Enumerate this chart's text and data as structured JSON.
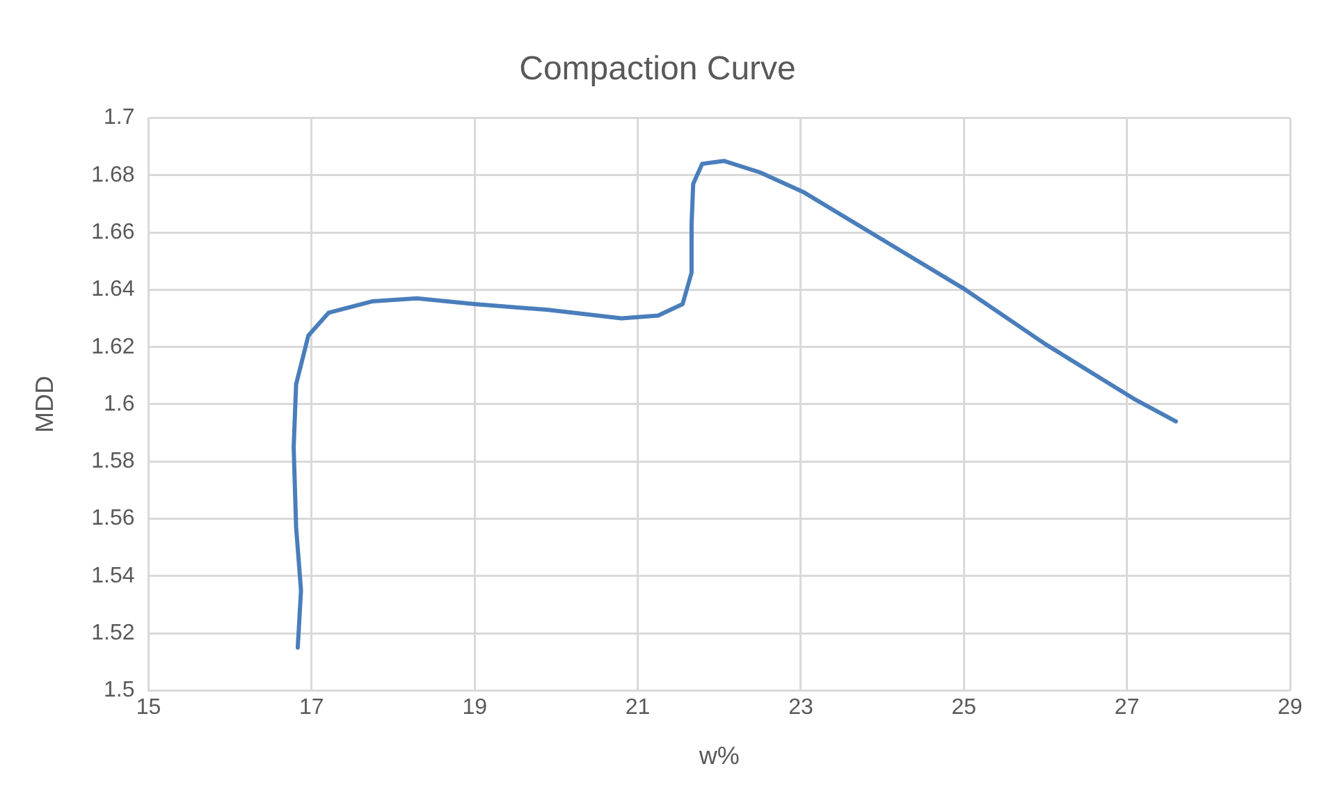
{
  "chart_data": {
    "type": "line",
    "title": "Compaction Curve",
    "xlabel": "w%",
    "ylabel": "MDD",
    "x": [
      16.83,
      16.87,
      16.81,
      16.78,
      16.81,
      16.96,
      17.21,
      17.75,
      18.29,
      19.0,
      19.9,
      20.8,
      21.25,
      21.55,
      21.66,
      21.66,
      21.68,
      21.79,
      22.06,
      22.5,
      23.04,
      24.03,
      25.02,
      26.0,
      27.08,
      27.6
    ],
    "series": [
      {
        "color": "#4a7ebb",
        "values": [
          1.515,
          1.535,
          1.557,
          1.585,
          1.607,
          1.624,
          1.632,
          1.636,
          1.637,
          1.635,
          1.633,
          1.63,
          1.631,
          1.635,
          1.646,
          1.663,
          1.677,
          1.684,
          1.685,
          1.681,
          1.674,
          1.657,
          1.64,
          1.621,
          1.602,
          1.594
        ]
      }
    ],
    "xlim": [
      15,
      29
    ],
    "xticks": [
      15,
      17,
      19,
      21,
      23,
      25,
      27,
      29
    ],
    "ylim": [
      1.5,
      1.7
    ],
    "yticks": [
      1.5,
      1.52,
      1.54,
      1.56,
      1.58,
      1.6,
      1.62,
      1.64,
      1.66,
      1.68,
      1.7
    ],
    "grid": true,
    "marker": "none",
    "line_style": "solid",
    "legend": false
  }
}
